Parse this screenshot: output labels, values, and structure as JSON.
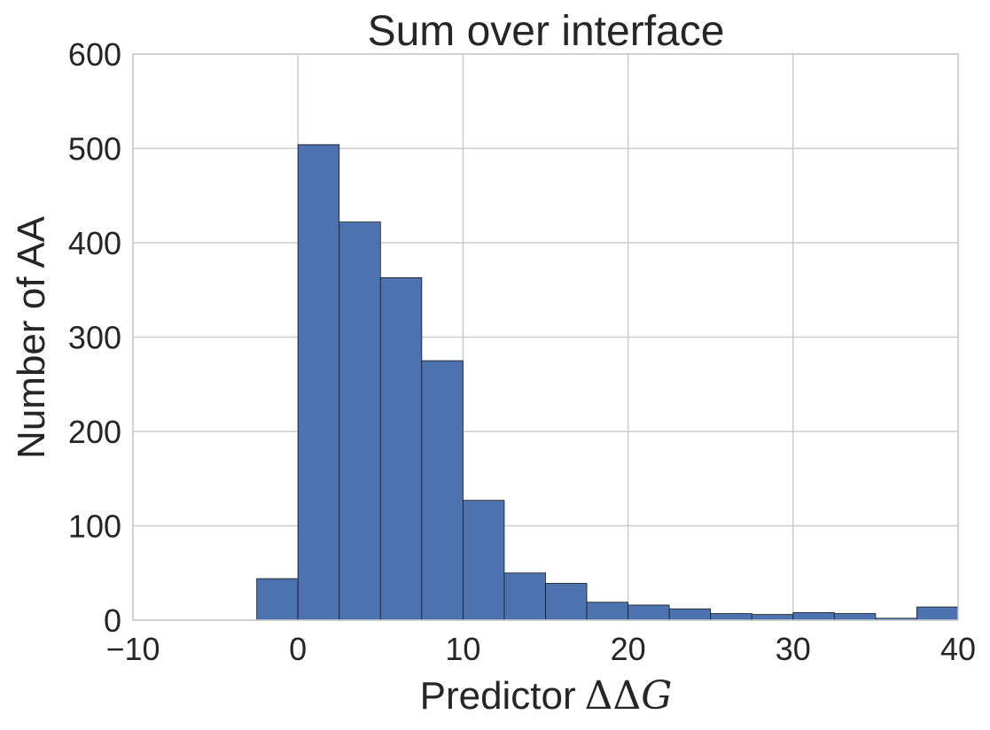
{
  "chart_data": {
    "type": "bar",
    "title": "Sum over interface",
    "xlabel": "Predictor",
    "xlabel_math": "ΔΔ",
    "xlabel_var": "G",
    "ylabel": "Number of AA",
    "xlim": [
      -10,
      40
    ],
    "ylim": [
      0,
      600
    ],
    "xticks": [
      -10,
      0,
      10,
      20,
      30,
      40
    ],
    "xtick_labels": [
      "−10",
      "0",
      "10",
      "20",
      "30",
      "40"
    ],
    "yticks": [
      0,
      100,
      200,
      300,
      400,
      500,
      600
    ],
    "ytick_labels": [
      "0",
      "100",
      "200",
      "300",
      "400",
      "500",
      "600"
    ],
    "grid": true,
    "bin_edges": [
      -2.5,
      0,
      2.5,
      5,
      7.5,
      10,
      12.5,
      15,
      17.5,
      20,
      22.5,
      25,
      27.5,
      30,
      32.5,
      35,
      37.5,
      40
    ],
    "values": [
      44,
      504,
      422,
      363,
      275,
      127,
      50,
      39,
      19,
      16,
      12,
      7,
      6,
      8,
      7,
      2,
      14
    ],
    "colors": {
      "bar": "#4c72b0",
      "edge": "#1a1a1a",
      "grid": "#cccccc",
      "text": "#262626",
      "background": "#ffffff"
    }
  }
}
